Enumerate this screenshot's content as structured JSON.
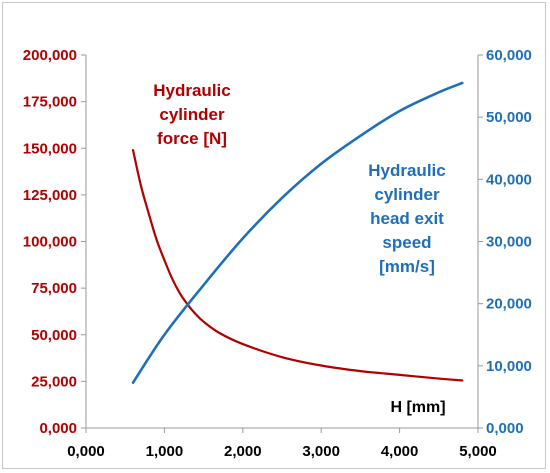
{
  "chart_data": {
    "type": "line",
    "x_axis": {
      "label": "H [mm]",
      "range": [
        0,
        5000
      ],
      "ticks": [
        0,
        1000,
        2000,
        3000,
        4000,
        5000
      ],
      "tick_labels": [
        "0,000",
        "1,000",
        "2,000",
        "3,000",
        "4,000",
        "5,000"
      ]
    },
    "y_left": {
      "range": [
        0,
        200000
      ],
      "ticks": [
        0,
        25000,
        50000,
        75000,
        100000,
        125000,
        150000,
        175000,
        200000
      ],
      "tick_labels": [
        "0,000",
        "25,000",
        "50,000",
        "75,000",
        "100,000",
        "125,000",
        "150,000",
        "175,000",
        "200,000"
      ],
      "color": "#b00000"
    },
    "y_right": {
      "range": [
        0,
        60000
      ],
      "ticks": [
        0,
        10000,
        20000,
        30000,
        40000,
        50000,
        60000
      ],
      "tick_labels": [
        "0,000",
        "10,000",
        "20,000",
        "30,000",
        "40,000",
        "50,000",
        "60,000"
      ],
      "color": "#1f6fb8"
    },
    "grid": false,
    "series": [
      {
        "name": "Hydraulic cylinder force [N]",
        "name_lines": [
          "Hydraulic",
          "cylinder",
          "force [N]"
        ],
        "axis": "left",
        "color": "#b00000",
        "x": [
          600,
          700,
          800,
          900,
          1000,
          1100,
          1200,
          1300,
          1400,
          1500,
          1700,
          2000,
          2500,
          3000,
          3500,
          4000,
          4500,
          4800
        ],
        "y": [
          149000,
          130000,
          115000,
          101000,
          90000,
          80000,
          72000,
          66000,
          61000,
          57000,
          51000,
          45000,
          38000,
          33500,
          30500,
          28500,
          26500,
          25500
        ]
      },
      {
        "name": "Hydraulic cylinder head exit speed [mm/s]",
        "name_lines": [
          "Hydraulic",
          "cylinder",
          "head exit",
          "speed",
          "[mm/s]"
        ],
        "axis": "right",
        "color": "#1f6fb8",
        "x": [
          600,
          1000,
          1500,
          2000,
          2500,
          3000,
          3500,
          4000,
          4500,
          4800
        ],
        "y": [
          7300,
          15000,
          23000,
          30500,
          37000,
          42500,
          47000,
          51000,
          54000,
          55500
        ]
      }
    ]
  }
}
